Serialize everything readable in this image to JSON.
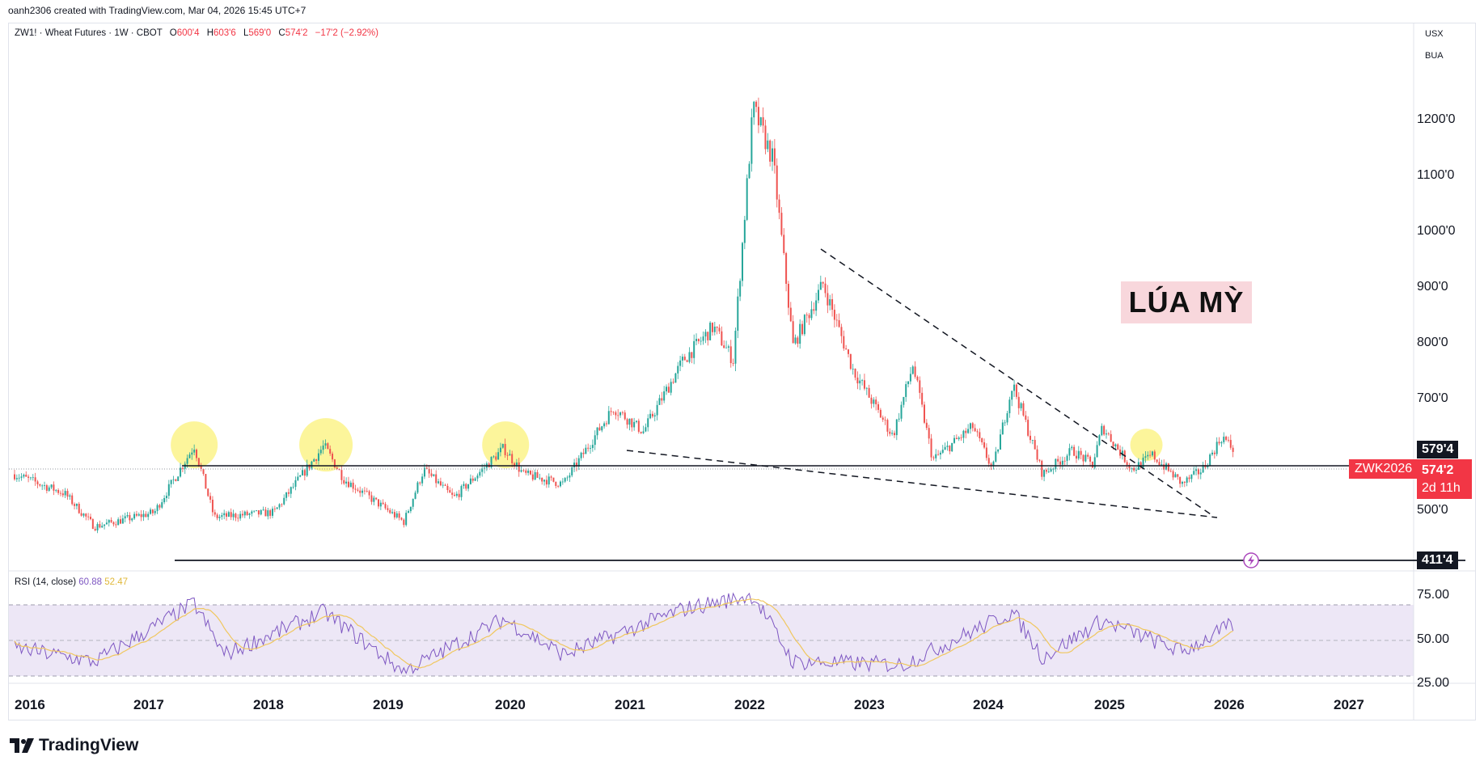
{
  "credit": "oanh2306 created with TradingView.com, Mar 04, 2026 15:45 UTC+7",
  "legend": {
    "symbol": "ZW1! · Wheat Futures · 1W · CBOT",
    "o_label": "O",
    "o": "600'4",
    "h_label": "H",
    "h": "603'6",
    "l_label": "L",
    "l": "569'0",
    "c_label": "C",
    "c": "574'2",
    "change": "−17'2 (−2.92%)"
  },
  "units": [
    "USX",
    "BUA"
  ],
  "annotation_title": "LÚA MỲ",
  "price_axis": [
    "1200'0",
    "1100'0",
    "1000'0",
    "900'0",
    "800'0",
    "700'0",
    "500'0"
  ],
  "level_tags": {
    "resistance": "579'4",
    "support": "411'4"
  },
  "current": {
    "symbol": "ZWK2026",
    "price": "574'2",
    "countdown": "2d 11h"
  },
  "rsi": {
    "label": "RSI (14, close)",
    "value": "60.88",
    "ma": "52.47",
    "axis": [
      "75.00",
      "50.00",
      "25.00"
    ]
  },
  "x_axis": [
    "2016",
    "2017",
    "2018",
    "2019",
    "2020",
    "2021",
    "2022",
    "2023",
    "2024",
    "2025",
    "2026",
    "2027"
  ],
  "brand": "TradingView",
  "colors": {
    "up": "#26a69a",
    "down": "#ef5350",
    "rsi": "#7e57c2",
    "rsi_ma": "#f0c75e",
    "rsi_band": "#ede7f6",
    "highlight": "#fbf38a",
    "tag_red": "#f23645"
  },
  "chart_data": {
    "type": "candlestick",
    "timeframe": "1W",
    "ylim": [
      400,
      1300
    ],
    "x_range": [
      "2016",
      "2027"
    ],
    "key_points": [
      {
        "date": "2016-01",
        "price": 520
      },
      {
        "date": "2016-06",
        "price": 480
      },
      {
        "date": "2016-09",
        "price": 410
      },
      {
        "date": "2017-03",
        "price": 440
      },
      {
        "date": "2017-07",
        "price": 580
      },
      {
        "date": "2017-09",
        "price": 430
      },
      {
        "date": "2018-03",
        "price": 440
      },
      {
        "date": "2018-08",
        "price": 580
      },
      {
        "date": "2018-10",
        "price": 510
      },
      {
        "date": "2019-04",
        "price": 420
      },
      {
        "date": "2019-06",
        "price": 530
      },
      {
        "date": "2019-09",
        "price": 470
      },
      {
        "date": "2020-02",
        "price": 575
      },
      {
        "date": "2020-04",
        "price": 520
      },
      {
        "date": "2020-08",
        "price": 500
      },
      {
        "date": "2021-01",
        "price": 660
      },
      {
        "date": "2021-04",
        "price": 610
      },
      {
        "date": "2021-08",
        "price": 760
      },
      {
        "date": "2021-11",
        "price": 830
      },
      {
        "date": "2022-01",
        "price": 760
      },
      {
        "date": "2022-03",
        "price": 1290
      },
      {
        "date": "2022-05",
        "price": 1180
      },
      {
        "date": "2022-07",
        "price": 790
      },
      {
        "date": "2022-10",
        "price": 920
      },
      {
        "date": "2023-01",
        "price": 740
      },
      {
        "date": "2023-05",
        "price": 600
      },
      {
        "date": "2023-07",
        "price": 750
      },
      {
        "date": "2023-09",
        "price": 550
      },
      {
        "date": "2024-01",
        "price": 620
      },
      {
        "date": "2024-03",
        "price": 530
      },
      {
        "date": "2024-05",
        "price": 710
      },
      {
        "date": "2024-08",
        "price": 520
      },
      {
        "date": "2024-11",
        "price": 570
      },
      {
        "date": "2025-01",
        "price": 540
      },
      {
        "date": "2025-02",
        "price": 620
      },
      {
        "date": "2025-05",
        "price": 530
      },
      {
        "date": "2025-07",
        "price": 560
      },
      {
        "date": "2025-10",
        "price": 500
      },
      {
        "date": "2025-12",
        "price": 530
      },
      {
        "date": "2026-02",
        "price": 600
      },
      {
        "date": "2026-03",
        "price": 574.25
      }
    ],
    "horizontal_levels": [
      579.5,
      411.5
    ],
    "current_price": 574.25,
    "rsi_series": {
      "name": "RSI (14, close)",
      "ylim": [
        25,
        80
      ],
      "bands": [
        30,
        50,
        70
      ],
      "key_points": [
        {
          "date": "2016-01",
          "value": 45
        },
        {
          "date": "2016-09",
          "value": 35
        },
        {
          "date": "2017-07",
          "value": 76
        },
        {
          "date": "2017-10",
          "value": 40
        },
        {
          "date": "2018-08",
          "value": 70
        },
        {
          "date": "2019-04",
          "value": 28
        },
        {
          "date": "2020-02",
          "value": 65
        },
        {
          "date": "2020-08",
          "value": 40
        },
        {
          "date": "2021-08",
          "value": 72
        },
        {
          "date": "2022-03",
          "value": 82
        },
        {
          "date": "2022-07",
          "value": 35
        },
        {
          "date": "2023-06",
          "value": 33
        },
        {
          "date": "2024-05",
          "value": 70
        },
        {
          "date": "2024-08",
          "value": 38
        },
        {
          "date": "2025-02",
          "value": 64
        },
        {
          "date": "2025-10",
          "value": 42
        },
        {
          "date": "2026-03",
          "value": 60.88
        }
      ]
    }
  }
}
